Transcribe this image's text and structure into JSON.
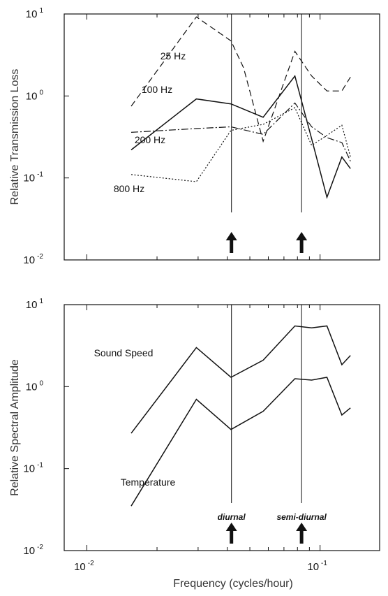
{
  "chart_data": [
    {
      "type": "line",
      "id": "top",
      "ylabel": "Relative Transmission Loss",
      "xscale": "log",
      "yscale": "log",
      "xlim": [
        0.008,
        0.18
      ],
      "ylim": [
        0.01,
        10
      ],
      "yticks": [
        {
          "mantissa": "10",
          "exp": "-2"
        },
        {
          "mantissa": "10",
          "exp": "-1"
        },
        {
          "mantissa": "10",
          "exp": "0"
        },
        {
          "mantissa": "10",
          "exp": "1"
        }
      ],
      "markers": [
        0.0417,
        0.0833
      ],
      "series": [
        {
          "name": "25 Hz",
          "style": "dashed",
          "x": [
            0.0155,
            0.0295,
            0.0415,
            0.047,
            0.057,
            0.078,
            0.092,
            0.107,
            0.124,
            0.135
          ],
          "y": [
            0.75,
            9.2,
            4.7,
            2.2,
            0.28,
            3.5,
            1.75,
            1.15,
            1.15,
            1.7
          ]
        },
        {
          "name": "100 Hz",
          "style": "solid",
          "x": [
            0.0155,
            0.0295,
            0.0415,
            0.057,
            0.078,
            0.092,
            0.107,
            0.124,
            0.135
          ],
          "y": [
            0.22,
            0.92,
            0.8,
            0.55,
            1.75,
            0.3,
            0.058,
            0.18,
            0.13
          ]
        },
        {
          "name": "200 Hz",
          "style": "dashdot",
          "x": [
            0.0155,
            0.0295,
            0.0415,
            0.057,
            0.078,
            0.092,
            0.107,
            0.124,
            0.135
          ],
          "y": [
            0.36,
            0.4,
            0.42,
            0.34,
            0.82,
            0.42,
            0.31,
            0.27,
            0.16
          ]
        },
        {
          "name": "800 Hz",
          "style": "dotted",
          "x": [
            0.0155,
            0.0295,
            0.0415,
            0.057,
            0.078,
            0.092,
            0.107,
            0.124,
            0.135
          ],
          "y": [
            0.11,
            0.09,
            0.38,
            0.45,
            0.72,
            0.25,
            0.33,
            0.44,
            0.18
          ]
        }
      ]
    },
    {
      "type": "line",
      "id": "bottom",
      "xlabel": "Frequency (cycles/hour)",
      "ylabel": "Relative Spectral Amplitude",
      "xscale": "log",
      "yscale": "log",
      "xlim": [
        0.008,
        0.18
      ],
      "ylim": [
        0.01,
        10
      ],
      "xticks": [
        {
          "value": 0.01,
          "mantissa": "10",
          "exp": "-2"
        },
        {
          "value": 0.1,
          "mantissa": "10",
          "exp": "-1"
        }
      ],
      "yticks": [
        {
          "mantissa": "10",
          "exp": "-2"
        },
        {
          "mantissa": "10",
          "exp": "-1"
        },
        {
          "mantissa": "10",
          "exp": "0"
        },
        {
          "mantissa": "10",
          "exp": "1"
        }
      ],
      "markers": [
        {
          "x": 0.0417,
          "label": "diurnal"
        },
        {
          "x": 0.0833,
          "label": "semi-diurnal"
        }
      ],
      "series": [
        {
          "name": "Sound Speed",
          "style": "solid",
          "x": [
            0.0155,
            0.0295,
            0.0415,
            0.057,
            0.078,
            0.092,
            0.107,
            0.124,
            0.135
          ],
          "y": [
            0.27,
            3.0,
            1.3,
            2.1,
            5.5,
            5.2,
            5.5,
            1.85,
            2.4
          ]
        },
        {
          "name": "Temperature",
          "style": "solid",
          "x": [
            0.0155,
            0.0295,
            0.0415,
            0.057,
            0.078,
            0.092,
            0.107,
            0.124,
            0.135
          ],
          "y": [
            0.035,
            0.7,
            0.3,
            0.5,
            1.25,
            1.2,
            1.3,
            0.45,
            0.55
          ]
        }
      ]
    }
  ]
}
